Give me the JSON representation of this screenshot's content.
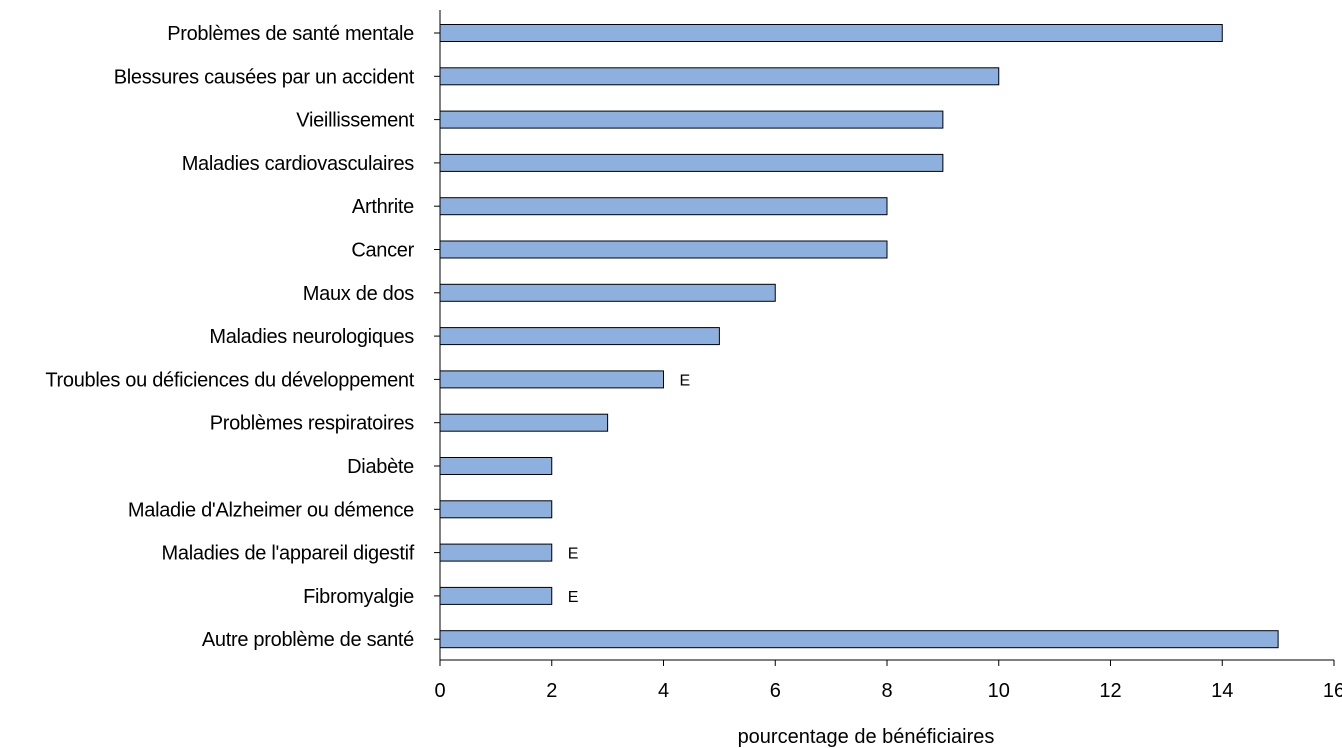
{
  "chart_data": {
    "type": "bar",
    "orientation": "horizontal",
    "categories": [
      "Problèmes de santé mentale",
      "Blessures causées par un accident",
      "Vieillissement",
      "Maladies cardiovasculaires",
      "Arthrite",
      "Cancer",
      "Maux de dos",
      "Maladies neurologiques",
      "Troubles ou déficiences du développement",
      "Problèmes respiratoires",
      "Diabète",
      "Maladie d'Alzheimer ou démence",
      "Maladies de l'appareil digestif",
      "Fibromyalgie",
      "Autre problème de santé"
    ],
    "values": [
      14,
      10,
      9,
      9,
      8,
      8,
      6,
      5,
      4,
      3,
      2,
      2,
      2,
      2,
      15
    ],
    "flags": [
      "",
      "",
      "",
      "",
      "",
      "",
      "",
      "",
      "E",
      "",
      "",
      "",
      "E",
      "E",
      ""
    ],
    "xlabel": "pourcentage de bénéficiaires",
    "ylabel": "",
    "xlim": [
      0,
      16
    ],
    "xticks": [
      "0",
      "2",
      "4",
      "6",
      "8",
      "10",
      "12",
      "14",
      "16"
    ],
    "grid": false,
    "bar_color": "#8EB0DF",
    "bar_edge_color": "#000000"
  }
}
